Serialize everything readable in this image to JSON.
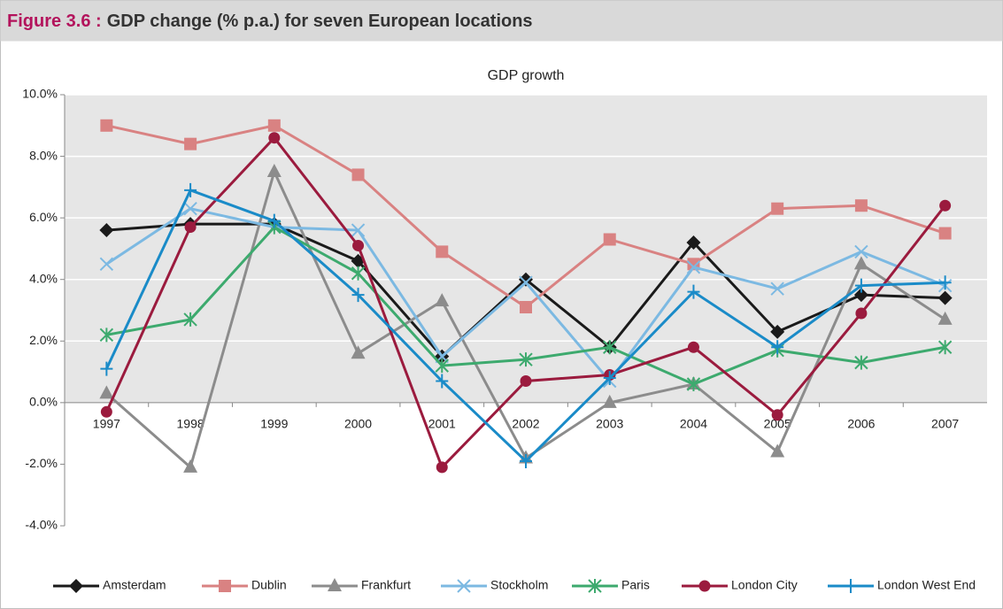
{
  "chart_data": {
    "type": "line",
    "figure_label": "Figure 3.6 :",
    "figure_title": "GDP change (% p.a.) for seven European locations",
    "title": "GDP growth",
    "categories": [
      "1997",
      "1998",
      "1999",
      "2000",
      "2001",
      "2002",
      "2003",
      "2004",
      "2005",
      "2006",
      "2007"
    ],
    "ylim": [
      -4,
      10
    ],
    "yticks": [
      {
        "value": -4,
        "label": "-4.0%"
      },
      {
        "value": -2,
        "label": "-2.0%"
      },
      {
        "value": 0,
        "label": "0.0%"
      },
      {
        "value": 2,
        "label": "2.0%"
      },
      {
        "value": 4,
        "label": "4.0%"
      },
      {
        "value": 6,
        "label": "6.0%"
      },
      {
        "value": 8,
        "label": "8.0%"
      },
      {
        "value": 10,
        "label": "10.0%"
      }
    ],
    "grid": true,
    "legend": "bottom",
    "series": [
      {
        "name": "Amsterdam",
        "color": "#1a1a1a",
        "marker": "diamond",
        "values": [
          5.6,
          5.8,
          5.8,
          4.6,
          1.5,
          4.0,
          1.8,
          5.2,
          2.3,
          3.5,
          3.4
        ]
      },
      {
        "name": "Dublin",
        "color": "#d98282",
        "marker": "square",
        "values": [
          9.0,
          8.4,
          9.0,
          7.4,
          4.9,
          3.1,
          5.3,
          4.5,
          6.3,
          6.4,
          5.5
        ]
      },
      {
        "name": "Frankfurt",
        "color": "#8c8c8c",
        "marker": "triangle",
        "values": [
          0.3,
          -2.1,
          7.5,
          1.6,
          3.3,
          -1.8,
          0.0,
          0.6,
          -1.6,
          4.5,
          2.7
        ]
      },
      {
        "name": "Stockholm",
        "color": "#7cb9e2",
        "marker": "x",
        "values": [
          4.5,
          6.3,
          5.7,
          5.6,
          1.5,
          3.9,
          0.7,
          4.4,
          3.7,
          4.9,
          3.8
        ]
      },
      {
        "name": "Paris",
        "color": "#3daa6e",
        "marker": "asterisk",
        "values": [
          2.2,
          2.7,
          5.7,
          4.2,
          1.2,
          1.4,
          1.8,
          0.6,
          1.7,
          1.3,
          1.8
        ]
      },
      {
        "name": "London City",
        "color": "#9b1b3e",
        "marker": "circle",
        "values": [
          -0.3,
          5.7,
          8.6,
          5.1,
          -2.1,
          0.7,
          0.9,
          1.8,
          -0.4,
          2.9,
          6.4
        ]
      },
      {
        "name": "London West End",
        "color": "#1a8bc8",
        "marker": "plus",
        "values": [
          1.1,
          6.9,
          5.9,
          3.5,
          0.7,
          -1.9,
          0.8,
          3.6,
          1.8,
          3.8,
          3.9
        ]
      }
    ]
  }
}
